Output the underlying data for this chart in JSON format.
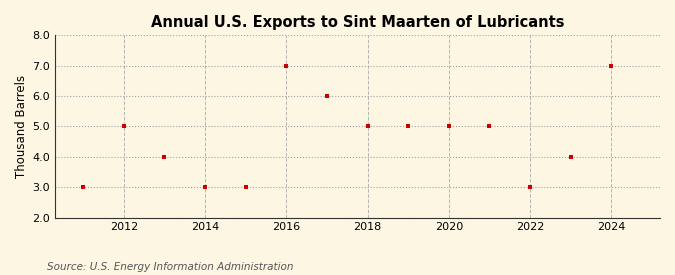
{
  "title": "Annual U.S. Exports to Sint Maarten of Lubricants",
  "ylabel": "Thousand Barrels",
  "source_text": "Source: U.S. Energy Information Administration",
  "years": [
    2011,
    2012,
    2013,
    2014,
    2015,
    2016,
    2017,
    2018,
    2019,
    2020,
    2021,
    2022,
    2023,
    2024
  ],
  "values": [
    3.0,
    5.0,
    4.0,
    3.0,
    3.0,
    7.0,
    6.0,
    5.0,
    5.0,
    5.0,
    5.0,
    3.0,
    4.0,
    7.0
  ],
  "ylim": [
    2.0,
    8.0
  ],
  "yticks": [
    2.0,
    3.0,
    4.0,
    5.0,
    6.0,
    7.0,
    8.0
  ],
  "xticks": [
    2012,
    2014,
    2016,
    2018,
    2020,
    2022,
    2024
  ],
  "xlim": [
    2010.3,
    2025.2
  ],
  "marker_color": "#cc0000",
  "marker": "s",
  "marker_size": 3.5,
  "background_color": "#fdf6e3",
  "plot_bg_color": "#fdf6e3",
  "grid_color": "#999999",
  "grid_style": "--",
  "title_fontsize": 10.5,
  "ylabel_fontsize": 8.5,
  "source_fontsize": 7.5,
  "tick_fontsize": 8
}
